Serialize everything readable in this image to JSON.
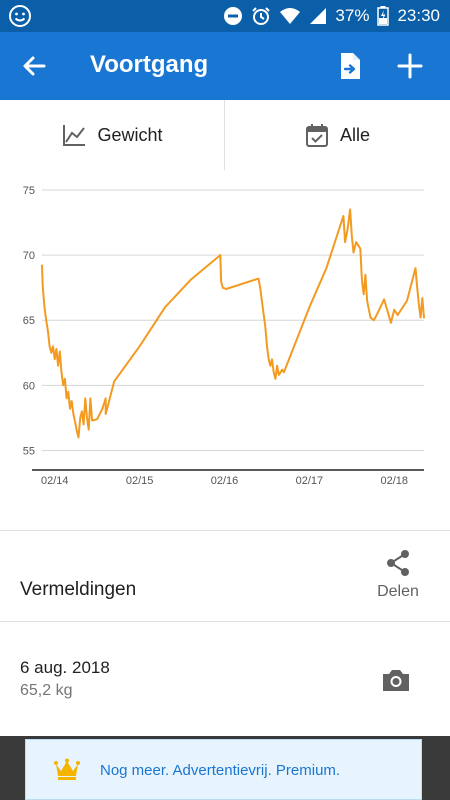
{
  "status_bar": {
    "battery": "37%",
    "time": "23:30"
  },
  "app_bar": {
    "title": "Voortgang"
  },
  "filters": {
    "metric_label": "Gewicht",
    "period_label": "Alle"
  },
  "chart_data": {
    "type": "line",
    "title": "",
    "xlabel": "",
    "ylabel": "",
    "ylim": [
      53.5,
      75
    ],
    "y_ticks": [
      55,
      60,
      65,
      70,
      75
    ],
    "x_tick_labels": [
      "02/14",
      "02/15",
      "02/16",
      "02/17",
      "02/18"
    ],
    "x_tick_positions": [
      0,
      1,
      2,
      3,
      4
    ],
    "xlim": [
      -0.15,
      4.35
    ],
    "grid": true,
    "color": "#f39a21",
    "series": [
      {
        "values": [
          [
            -0.15,
            69.2
          ],
          [
            -0.14,
            67.5
          ],
          [
            -0.12,
            66.0
          ],
          [
            -0.1,
            65.0
          ],
          [
            -0.08,
            64.2
          ],
          [
            -0.06,
            63.0
          ],
          [
            -0.04,
            62.5
          ],
          [
            -0.02,
            63.0
          ],
          [
            0.0,
            62.0
          ],
          [
            0.02,
            62.8
          ],
          [
            0.04,
            61.5
          ],
          [
            0.06,
            62.6
          ],
          [
            0.08,
            61.0
          ],
          [
            0.1,
            60.0
          ],
          [
            0.12,
            60.5
          ],
          [
            0.14,
            59.0
          ],
          [
            0.16,
            59.5
          ],
          [
            0.18,
            58.2
          ],
          [
            0.2,
            58.8
          ],
          [
            0.22,
            57.8
          ],
          [
            0.24,
            57.2
          ],
          [
            0.26,
            56.5
          ],
          [
            0.28,
            56.0
          ],
          [
            0.3,
            57.5
          ],
          [
            0.32,
            58.0
          ],
          [
            0.34,
            57.0
          ],
          [
            0.36,
            59.0
          ],
          [
            0.38,
            57.5
          ],
          [
            0.4,
            56.6
          ],
          [
            0.42,
            59.0
          ],
          [
            0.44,
            57.3
          ],
          [
            0.5,
            57.4
          ],
          [
            0.56,
            58.2
          ],
          [
            0.6,
            59.0
          ],
          [
            0.6,
            57.8
          ],
          [
            0.7,
            60.3
          ],
          [
            1.0,
            63.0
          ],
          [
            1.3,
            66.0
          ],
          [
            1.6,
            68.1
          ],
          [
            1.95,
            70.0
          ],
          [
            1.96,
            68.0
          ],
          [
            1.98,
            67.5
          ],
          [
            2.02,
            67.4
          ],
          [
            2.4,
            68.2
          ],
          [
            2.42,
            67.5
          ],
          [
            2.45,
            66.0
          ],
          [
            2.48,
            64.5
          ],
          [
            2.5,
            63.0
          ],
          [
            2.52,
            62.0
          ],
          [
            2.54,
            61.5
          ],
          [
            2.56,
            62.0
          ],
          [
            2.58,
            61.0
          ],
          [
            2.6,
            60.5
          ],
          [
            2.62,
            61.5
          ],
          [
            2.64,
            60.8
          ],
          [
            2.68,
            61.2
          ],
          [
            2.7,
            61.0
          ],
          [
            3.0,
            66.0
          ],
          [
            3.2,
            69.0
          ],
          [
            3.4,
            73.0
          ],
          [
            3.42,
            71.0
          ],
          [
            3.45,
            72.0
          ],
          [
            3.48,
            73.5
          ],
          [
            3.5,
            71.5
          ],
          [
            3.52,
            70.2
          ],
          [
            3.55,
            71.0
          ],
          [
            3.6,
            70.5
          ],
          [
            3.62,
            68.0
          ],
          [
            3.64,
            67.0
          ],
          [
            3.66,
            68.5
          ],
          [
            3.68,
            66.5
          ],
          [
            3.72,
            65.2
          ],
          [
            3.76,
            65.0
          ],
          [
            3.8,
            65.5
          ],
          [
            3.88,
            66.6
          ],
          [
            3.96,
            64.8
          ],
          [
            4.0,
            65.8
          ],
          [
            4.04,
            65.4
          ],
          [
            4.15,
            66.5
          ],
          [
            4.25,
            69.0
          ],
          [
            4.27,
            67.5
          ],
          [
            4.29,
            66.2
          ],
          [
            4.31,
            65.2
          ],
          [
            4.33,
            66.7
          ],
          [
            4.35,
            65.2
          ]
        ]
      }
    ]
  },
  "entries": {
    "title": "Vermeldingen",
    "share_label": "Delen",
    "items": [
      {
        "date": "6 aug. 2018",
        "weight": "65,2 kg"
      }
    ]
  },
  "ad": {
    "text": "Nog meer. Advertentievrij. Premium."
  }
}
